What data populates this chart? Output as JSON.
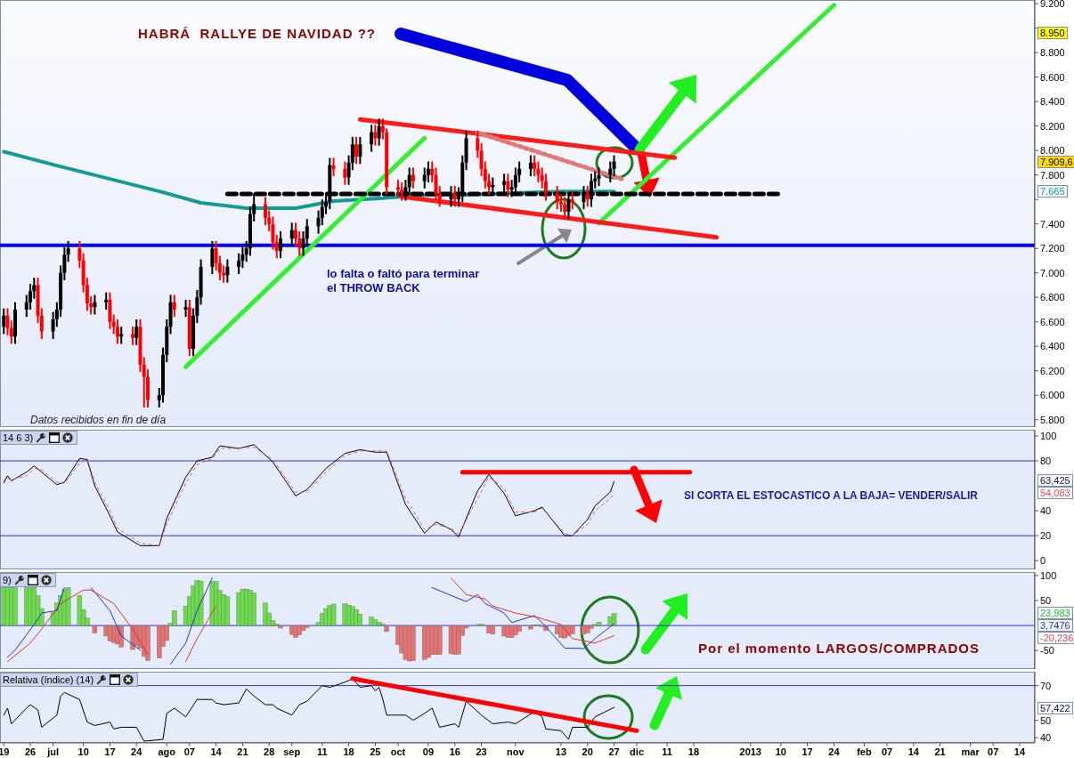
{
  "chart_data": [
    {
      "type": "candlestick",
      "title": "HABRÁ  RALLYE DE NAVIDAD ??",
      "annotations": [
        "lo falta o faltó para terminar\nel THROW BACK",
        "Datos recibidos en fin de día",
        "8.950",
        "7.909,6",
        "7.665"
      ],
      "xlim": [
        "2012-06-18",
        "2013-03-18"
      ],
      "ylim": [
        5740,
        9230
      ],
      "yticks": [
        {
          "value": 5800,
          "label": "5.800"
        },
        {
          "value": 6000,
          "label": "6.000"
        },
        {
          "value": 6200,
          "label": "6.200"
        },
        {
          "value": 6400,
          "label": "6.400"
        },
        {
          "value": 6600,
          "label": "6.600"
        },
        {
          "value": 6800,
          "label": "6.800"
        },
        {
          "value": 7000,
          "label": "7.000"
        },
        {
          "value": 7200,
          "label": "7.200"
        },
        {
          "value": 7400,
          "label": "7.400"
        },
        {
          "value": 7600,
          "label": null
        },
        {
          "value": 7800,
          "label": "7.800"
        },
        {
          "value": 8000,
          "label": "8.000"
        },
        {
          "value": 8200,
          "label": "8.200"
        },
        {
          "value": 8400,
          "label": "8.400"
        },
        {
          "value": 8600,
          "label": "8.600"
        },
        {
          "value": 8800,
          "label": "8.800"
        },
        {
          "value": 9000,
          "label": null
        },
        {
          "value": 9200,
          "label": "9.200"
        }
      ],
      "tick_labels": "y",
      "ref_lines": [
        {
          "axis": "y",
          "value": 7225,
          "color": "#0000ee"
        }
      ],
      "series": [
        {
          "color": "#000000",
          "x": [
            "2012-06-19",
            "2012-06-22",
            "2012-06-25",
            "2012-06-26",
            "2012-06-27",
            "2012-07-02",
            "2012-07-03",
            "2012-07-04",
            "2012-07-05",
            "2012-07-06",
            "2012-07-13",
            "2012-07-16",
            "2012-07-20",
            "2012-07-24",
            "2012-07-30",
            "2012-07-31",
            "2012-08-01",
            "2012-08-02",
            "2012-08-06",
            "2012-08-08",
            "2012-08-09",
            "2012-08-10",
            "2012-08-13",
            "2012-08-17",
            "2012-08-20",
            "2012-08-21",
            "2012-08-22",
            "2012-08-23",
            "2012-08-24",
            "2012-08-31",
            "2012-09-03",
            "2012-09-06",
            "2012-09-07",
            "2012-09-10",
            "2012-09-11",
            "2012-09-12",
            "2012-09-13",
            "2012-09-18",
            "2012-09-19",
            "2012-09-21",
            "2012-09-24",
            "2012-09-26",
            "2012-10-03",
            "2012-10-04",
            "2012-10-08",
            "2012-10-09",
            "2012-10-15",
            "2012-10-17",
            "2012-10-18",
            "2012-10-19",
            "2012-10-26",
            "2012-10-29",
            "2012-10-31",
            "2012-11-01",
            "2012-11-02",
            "2012-11-05",
            "2012-11-15",
            "2012-11-19",
            "2012-11-21",
            "2012-11-22",
            "2012-11-23",
            "2012-11-26",
            "2012-11-27"
          ],
          "ohlc": [
            [
              6560,
              6710,
              6500,
              6650
            ],
            [
              6480,
              6760,
              6420,
              6700
            ],
            [
              6700,
              6820,
              6640,
              6760
            ],
            [
              6760,
              6910,
              6700,
              6850
            ],
            [
              6850,
              6960,
              6790,
              6900
            ],
            [
              6520,
              6680,
              6460,
              6620
            ],
            [
              6620,
              6760,
              6560,
              6700
            ],
            [
              6700,
              7060,
              6640,
              7000
            ],
            [
              7000,
              7210,
              6940,
              7150
            ],
            [
              7150,
              7260,
              7090,
              7200
            ],
            [
              6720,
              6820,
              6660,
              6760
            ],
            [
              6760,
              6840,
              6700,
              6780
            ],
            [
              6480,
              6560,
              6420,
              6500
            ],
            [
              6470,
              6620,
              6410,
              6560
            ],
            [
              5960,
              6060,
              5900,
              6000
            ],
            [
              6000,
              6390,
              5940,
              6330
            ],
            [
              6330,
              6620,
              6270,
              6560
            ],
            [
              6560,
              6820,
              6500,
              6760
            ],
            [
              6700,
              6780,
              6640,
              6720
            ],
            [
              6380,
              6710,
              6320,
              6650
            ],
            [
              6650,
              6860,
              6590,
              6800
            ],
            [
              6800,
              7110,
              6740,
              7050
            ],
            [
              7050,
              7260,
              6990,
              7200
            ],
            [
              6980,
              7110,
              6920,
              7050
            ],
            [
              7050,
              7160,
              6990,
              7100
            ],
            [
              7100,
              7210,
              7040,
              7150
            ],
            [
              7150,
              7260,
              7090,
              7200
            ],
            [
              7200,
              7540,
              7140,
              7480
            ],
            [
              7480,
              7650,
              7420,
              7560
            ],
            [
              7180,
              7340,
              7120,
              7280
            ],
            [
              7280,
              7410,
              7220,
              7350
            ],
            [
              7200,
              7340,
              7140,
              7280
            ],
            [
              7280,
              7440,
              7220,
              7380
            ],
            [
              7380,
              7510,
              7320,
              7450
            ],
            [
              7450,
              7600,
              7390,
              7540
            ],
            [
              7540,
              7640,
              7480,
              7580
            ],
            [
              7580,
              7940,
              7520,
              7880
            ],
            [
              7780,
              7960,
              7720,
              7900
            ],
            [
              7900,
              8110,
              7840,
              8050
            ],
            [
              7950,
              8110,
              7890,
              8050
            ],
            [
              8050,
              8210,
              7990,
              8150
            ],
            [
              8100,
              8260,
              8040,
              8200
            ],
            [
              7650,
              7760,
              7590,
              7700
            ],
            [
              7700,
              7860,
              7640,
              7800
            ],
            [
              7750,
              7860,
              7690,
              7800
            ],
            [
              7800,
              7910,
              7740,
              7850
            ],
            [
              7600,
              7710,
              7540,
              7650
            ],
            [
              7600,
              7700,
              7540,
              7640
            ],
            [
              7640,
              7960,
              7580,
              7900
            ],
            [
              7900,
              8160,
              7840,
              8100
            ],
            [
              7700,
              7780,
              7640,
              7720
            ],
            [
              7720,
              7810,
              7660,
              7750
            ],
            [
              7680,
              7760,
              7620,
              7700
            ],
            [
              7700,
              7860,
              7640,
              7800
            ],
            [
              7800,
              7910,
              7740,
              7850
            ],
            [
              7850,
              7960,
              7790,
              7900
            ],
            [
              7500,
              7660,
              7440,
              7600
            ],
            [
              7580,
              7710,
              7520,
              7650
            ],
            [
              7600,
              7810,
              7540,
              7750
            ],
            [
              7750,
              7830,
              7690,
              7770
            ],
            [
              7770,
              7860,
              7710,
              7800
            ],
            [
              7800,
              7910,
              7740,
              7850
            ],
            [
              7850,
              7960,
              7790,
              7909.6
            ]
          ]
        },
        {
          "color": "#ff0000",
          "x": [
            "2012-06-20",
            "2012-06-21",
            "2012-06-28",
            "2012-06-29",
            "2012-07-09",
            "2012-07-10",
            "2012-07-11",
            "2012-07-12",
            "2012-07-17",
            "2012-07-18",
            "2012-07-19",
            "2012-07-23",
            "2012-07-25",
            "2012-07-26",
            "2012-07-27",
            "2012-08-03",
            "2012-08-07",
            "2012-08-14",
            "2012-08-15",
            "2012-08-16",
            "2012-08-27",
            "2012-08-28",
            "2012-08-29",
            "2012-08-30",
            "2012-09-04",
            "2012-09-05",
            "2012-09-14",
            "2012-09-17",
            "2012-09-20",
            "2012-09-25",
            "2012-09-27",
            "2012-09-28",
            "2012-10-01",
            "2012-10-02",
            "2012-10-05",
            "2012-10-10",
            "2012-10-11",
            "2012-10-12",
            "2012-10-16",
            "2012-10-22",
            "2012-10-23",
            "2012-10-24",
            "2012-10-25",
            "2012-10-30",
            "2012-11-06",
            "2012-11-07",
            "2012-11-08",
            "2012-11-09",
            "2012-11-12",
            "2012-11-13",
            "2012-11-14",
            "2012-11-16",
            "2012-11-20"
          ],
          "ohlc": [
            [
              6650,
              6710,
              6490,
              6550
            ],
            [
              6550,
              6610,
              6420,
              6480
            ],
            [
              6900,
              6960,
              6590,
              6650
            ],
            [
              6650,
              6710,
              6460,
              6520
            ],
            [
              7200,
              7260,
              7040,
              7100
            ],
            [
              7100,
              7160,
              6840,
              6900
            ],
            [
              6900,
              6960,
              6690,
              6750
            ],
            [
              6750,
              6810,
              6660,
              6720
            ],
            [
              6780,
              6840,
              6540,
              6600
            ],
            [
              6600,
              6660,
              6500,
              6560
            ],
            [
              6560,
              6620,
              6420,
              6480
            ],
            [
              6500,
              6560,
              6410,
              6470
            ],
            [
              6560,
              6620,
              6190,
              6250
            ],
            [
              6250,
              6310,
              5900,
              6150
            ],
            [
              6150,
              6210,
              5900,
              5960
            ],
            [
              6760,
              6820,
              6640,
              6700
            ],
            [
              6720,
              6780,
              6320,
              6380
            ],
            [
              7200,
              7260,
              7020,
              7080
            ],
            [
              7080,
              7140,
              6940,
              7000
            ],
            [
              7000,
              7060,
              6920,
              6980
            ],
            [
              7560,
              7620,
              7390,
              7450
            ],
            [
              7450,
              7510,
              7340,
              7400
            ],
            [
              7400,
              7460,
              7190,
              7250
            ],
            [
              7250,
              7310,
              7120,
              7180
            ],
            [
              7350,
              7410,
              7220,
              7280
            ],
            [
              7280,
              7340,
              7140,
              7200
            ],
            [
              7880,
              7940,
              7790,
              7850
            ],
            [
              7850,
              7910,
              7720,
              7780
            ],
            [
              8050,
              8110,
              7890,
              7950
            ],
            [
              8150,
              8210,
              8040,
              8100
            ],
            [
              8200,
              8260,
              8090,
              8150
            ],
            [
              8150,
              8180,
              7640,
              7700
            ],
            [
              7700,
              7760,
              7620,
              7680
            ],
            [
              7680,
              7740,
              7590,
              7650
            ],
            [
              7800,
              7860,
              7690,
              7750
            ],
            [
              7850,
              7910,
              7740,
              7800
            ],
            [
              7800,
              7860,
              7590,
              7650
            ],
            [
              7650,
              7710,
              7540,
              7600
            ],
            [
              7650,
              7710,
              7540,
              7600
            ],
            [
              8100,
              8160,
              7940,
              8000
            ],
            [
              8000,
              8060,
              7790,
              7850
            ],
            [
              7850,
              7910,
              7690,
              7750
            ],
            [
              7750,
              7810,
              7640,
              7700
            ],
            [
              7750,
              7810,
              7620,
              7680
            ],
            [
              7900,
              7960,
              7790,
              7850
            ],
            [
              7850,
              7910,
              7740,
              7800
            ],
            [
              7800,
              7860,
              7690,
              7750
            ],
            [
              7750,
              7810,
              7590,
              7650
            ],
            [
              7650,
              7710,
              7520,
              7580
            ],
            [
              7580,
              7640,
              7500,
              7560
            ],
            [
              7560,
              7620,
              7440,
              7500
            ],
            [
              7600,
              7660,
              7520,
              7580
            ],
            [
              7650,
              7710,
              7540,
              7600
            ]
          ]
        },
        {
          "type": "line",
          "color": "#159a9a",
          "x": [
            "2012-06-19",
            "2012-07-03",
            "2012-07-17",
            "2012-07-31",
            "2012-08-10",
            "2012-08-22",
            "2012-09-04",
            "2012-09-14",
            "2012-09-26",
            "2012-10-09",
            "2012-10-19",
            "2012-10-31",
            "2012-11-13",
            "2012-11-27"
          ],
          "values": [
            7990,
            7877,
            7768,
            7659,
            7572,
            7529,
            7529,
            7587,
            7609,
            7638,
            7638,
            7652,
            7665,
            7665
          ]
        },
        {
          "type": "line",
          "color": "#33ee33",
          "x": [
            "2012-08-06",
            "2012-10-08"
          ],
          "values": [
            6232,
            8101
          ]
        },
        {
          "type": "line",
          "color": "#33ee33",
          "x": [
            "2012-11-23",
            "2013-01-24"
          ],
          "values": [
            7406,
            9188
          ]
        },
        {
          "type": "line",
          "color": "#ff1a1a",
          "x": [
            "2012-09-21",
            "2012-12-13"
          ],
          "values": [
            8254,
            7942
          ]
        },
        {
          "type": "line",
          "color": "#ff1a1a",
          "x": [
            "2012-10-02",
            "2012-12-24"
          ],
          "values": [
            7623,
            7290
          ]
        },
        {
          "type": "line",
          "color": "#e07a7a",
          "line_style": "dotted",
          "x": [
            "2012-10-22",
            "2012-11-29"
          ],
          "values": [
            8145,
            7768
          ]
        },
        {
          "type": "line",
          "color": "#000000",
          "line_style": "dashed",
          "x": [
            "2012-08-17",
            "2013-01-10"
          ],
          "values": [
            7645,
            7645
          ]
        }
      ]
    },
    {
      "type": "line",
      "title": "14 6 3)",
      "annotations": [
        "SI CORTA EL ESTOCASTICO A LA BAJA= VENDER/SALIR",
        "63,425",
        "54,083"
      ],
      "xlim": [
        "2012-06-18",
        "2013-03-18"
      ],
      "ylim": [
        -7,
        105
      ],
      "yticks": [
        0,
        20,
        40,
        80,
        100
      ],
      "tick_labels": "y",
      "ref_lines": [
        {
          "axis": "y",
          "value": 80,
          "color": "#3333cc"
        },
        {
          "axis": "y",
          "value": 20,
          "color": "#3333cc"
        }
      ],
      "series": [
        {
          "color": "#000000",
          "x": [
            "2012-06-19",
            "2012-06-20",
            "2012-06-21",
            "2012-06-25",
            "2012-06-27",
            "2012-06-29",
            "2012-07-03",
            "2012-07-05",
            "2012-07-09",
            "2012-07-11",
            "2012-07-13",
            "2012-07-17",
            "2012-07-19",
            "2012-07-25",
            "2012-07-30",
            "2012-08-01",
            "2012-08-06",
            "2012-08-09",
            "2012-08-13",
            "2012-08-15",
            "2012-08-20",
            "2012-08-24",
            "2012-08-29",
            "2012-09-04",
            "2012-09-07",
            "2012-09-12",
            "2012-09-17",
            "2012-09-21",
            "2012-09-25",
            "2012-09-28",
            "2012-10-03",
            "2012-10-08",
            "2012-10-11",
            "2012-10-15",
            "2012-10-17",
            "2012-10-22",
            "2012-10-25",
            "2012-10-29",
            "2012-11-01",
            "2012-11-06",
            "2012-11-08",
            "2012-11-14",
            "2012-11-16",
            "2012-11-20",
            "2012-11-22",
            "2012-11-26",
            "2012-11-27"
          ],
          "values": [
            63,
            68,
            64,
            71,
            76,
            71,
            61,
            63,
            82,
            81,
            60,
            36,
            23,
            12,
            12,
            34,
            67,
            80,
            83,
            92,
            90,
            93,
            79,
            52,
            57,
            74,
            86,
            89,
            87,
            87,
            45,
            22,
            31,
            25,
            19,
            56,
            69,
            54,
            36,
            40,
            43,
            20,
            20,
            33,
            44,
            55,
            63.425
          ]
        },
        {
          "color": "#e06060",
          "line_style": "dotted",
          "x": [
            "2012-06-19",
            "2012-06-20",
            "2012-06-21",
            "2012-06-25",
            "2012-06-27",
            "2012-06-29",
            "2012-07-03",
            "2012-07-05",
            "2012-07-09",
            "2012-07-11",
            "2012-07-13",
            "2012-07-17",
            "2012-07-19",
            "2012-07-25",
            "2012-07-30",
            "2012-08-01",
            "2012-08-06",
            "2012-08-09",
            "2012-08-13",
            "2012-08-15",
            "2012-08-20",
            "2012-08-24",
            "2012-08-29",
            "2012-09-04",
            "2012-09-07",
            "2012-09-12",
            "2012-09-17",
            "2012-09-21",
            "2012-09-25",
            "2012-09-28",
            "2012-10-03",
            "2012-10-08",
            "2012-10-11",
            "2012-10-15",
            "2012-10-17",
            "2012-10-22",
            "2012-10-25",
            "2012-10-29",
            "2012-11-01",
            "2012-11-06",
            "2012-11-08",
            "2012-11-14",
            "2012-11-16",
            "2012-11-20",
            "2012-11-22",
            "2012-11-26",
            "2012-11-27"
          ],
          "values": [
            62,
            66,
            65,
            68,
            74,
            73,
            63,
            62,
            78,
            82,
            63,
            40,
            26,
            14,
            12,
            30,
            62,
            77,
            82,
            90,
            90,
            91,
            81,
            55,
            55,
            71,
            84,
            88,
            88,
            88,
            50,
            25,
            29,
            26,
            21,
            50,
            67,
            58,
            39,
            39,
            42,
            22,
            20,
            29,
            40,
            50,
            54.083
          ]
        },
        {
          "color": "#ff0000",
          "x": [
            "2012-10-18",
            "2012-12-17"
          ],
          "values": [
            71,
            71
          ]
        }
      ]
    },
    {
      "type": "bar",
      "title": "9)",
      "annotations": [
        "Por el momento LARGOS/COMPRADOS",
        "23,983",
        "3,7476",
        "-20,236"
      ],
      "xlim": [
        "2012-06-18",
        "2013-03-18"
      ],
      "ylim": [
        -87,
        107
      ],
      "yticks": [
        -50,
        50,
        100
      ],
      "tick_labels": "y",
      "ref_lines": [
        {
          "axis": "y",
          "value": 0,
          "color": "#3333cc"
        }
      ],
      "series": [
        {
          "color": "#6ddc4c",
          "x": [
            "2012-06-19",
            "2012-06-20",
            "2012-06-21",
            "2012-06-22",
            "2012-06-25",
            "2012-06-26",
            "2012-06-27",
            "2012-06-28",
            "2012-06-29",
            "2012-07-02",
            "2012-07-03",
            "2012-07-04",
            "2012-07-05",
            "2012-07-06",
            "2012-07-09",
            "2012-07-10",
            "2012-07-11",
            "2012-08-02",
            "2012-08-03",
            "2012-08-06",
            "2012-08-07",
            "2012-08-08",
            "2012-08-09",
            "2012-08-10",
            "2012-08-13",
            "2012-08-14",
            "2012-08-15",
            "2012-08-16",
            "2012-08-17",
            "2012-08-20",
            "2012-08-21",
            "2012-08-22",
            "2012-08-23",
            "2012-08-24",
            "2012-08-27",
            "2012-08-28",
            "2012-08-29",
            "2012-08-30",
            "2012-09-10",
            "2012-09-11",
            "2012-09-12",
            "2012-09-13",
            "2012-09-14",
            "2012-09-17",
            "2012-09-18",
            "2012-09-19",
            "2012-09-20",
            "2012-09-21",
            "2012-09-24",
            "2012-09-25",
            "2012-09-26",
            "2012-09-27",
            "2012-10-22",
            "2012-10-23",
            "2012-11-06",
            "2012-11-07",
            "2012-11-22",
            "2012-11-23",
            "2012-11-26",
            "2012-11-27"
          ],
          "values": [
            76,
            76,
            76,
            76,
            76,
            76,
            76,
            60,
            34,
            26,
            45,
            60,
            72,
            76,
            60,
            32,
            15,
            5,
            30,
            39,
            58,
            80,
            90,
            89,
            88,
            88,
            70,
            62,
            58,
            66,
            73,
            73,
            71,
            65,
            45,
            25,
            10,
            3,
            6,
            24,
            34,
            40,
            43,
            44,
            41,
            38,
            32,
            23,
            17,
            12,
            6,
            3,
            2,
            3,
            1,
            2,
            3,
            7,
            18,
            23.983
          ]
        },
        {
          "color": "#e57373",
          "x": [
            "2012-07-12",
            "2012-07-13",
            "2012-07-16",
            "2012-07-17",
            "2012-07-18",
            "2012-07-19",
            "2012-07-20",
            "2012-07-23",
            "2012-07-24",
            "2012-07-25",
            "2012-07-26",
            "2012-07-27",
            "2012-07-30",
            "2012-07-31",
            "2012-08-01",
            "2012-08-31",
            "2012-09-03",
            "2012-09-04",
            "2012-09-05",
            "2012-09-06",
            "2012-09-07",
            "2012-09-28",
            "2012-10-01",
            "2012-10-02",
            "2012-10-03",
            "2012-10-04",
            "2012-10-05",
            "2012-10-08",
            "2012-10-09",
            "2012-10-10",
            "2012-10-11",
            "2012-10-12",
            "2012-10-15",
            "2012-10-16",
            "2012-10-17",
            "2012-10-18",
            "2012-10-19",
            "2012-10-24",
            "2012-10-25",
            "2012-10-26",
            "2012-10-29",
            "2012-10-30",
            "2012-10-31",
            "2012-11-01",
            "2012-11-02",
            "2012-11-05",
            "2012-11-08",
            "2012-11-09",
            "2012-11-12",
            "2012-11-13",
            "2012-11-14",
            "2012-11-15",
            "2012-11-16",
            "2012-11-19",
            "2012-11-20",
            "2012-11-21"
          ],
          "values": [
            -1,
            -15,
            -21,
            -31,
            -34,
            -37,
            -43,
            -48,
            -40,
            -45,
            -62,
            -70,
            -65,
            -42,
            -30,
            -5,
            -18,
            -24,
            -19,
            -10,
            -4,
            -12,
            -38,
            -55,
            -68,
            -71,
            -70,
            -68,
            -64,
            -58,
            -58,
            -58,
            -56,
            -58,
            -57,
            -20,
            -5,
            -1,
            -15,
            -17,
            -21,
            -24,
            -24,
            -19,
            -12,
            -7,
            -2,
            -10,
            -17,
            -24,
            -25,
            -20,
            -17,
            -17,
            -15,
            -6
          ]
        },
        {
          "type": "line",
          "color": "#2233cc",
          "x": [
            "2012-06-20",
            "2012-06-22",
            "2012-06-27",
            "2012-06-29",
            "2012-07-03",
            "2012-07-05",
            "2012-07-06",
            "2012-07-12",
            "2012-07-17",
            "2012-07-20",
            "2012-07-25",
            "2012-07-27",
            "2012-08-02",
            "2012-08-06",
            "2012-08-09",
            "2012-08-13",
            "2012-08-14",
            "2012-10-10",
            "2012-10-16",
            "2012-10-19",
            "2012-10-22",
            "2012-10-24",
            "2012-10-29",
            "2012-10-31",
            "2012-11-06",
            "2012-11-08",
            "2012-11-14",
            "2012-11-19",
            "2012-11-22",
            "2012-11-27"
          ],
          "values": [
            -63,
            -49,
            2,
            25,
            30,
            76,
            null,
            76,
            30,
            -21,
            -49,
            null,
            -77,
            -35,
            30,
            95,
            null,
            76,
            57,
            48,
            62,
            44,
            25,
            6,
            20,
            6,
            -45,
            -46,
            -26,
            3.7476
          ]
        },
        {
          "type": "line",
          "color": "#dd3333",
          "x": [
            "2012-06-20",
            "2012-06-26",
            "2012-06-29",
            "2012-07-04",
            "2012-07-10",
            "2012-07-12",
            "2012-07-18",
            "2012-07-23",
            "2012-07-27",
            "2012-07-30",
            "2012-08-06",
            "2012-08-09",
            "2012-08-14",
            "2012-08-20",
            "2012-10-15",
            "2012-10-19",
            "2012-10-24",
            "2012-10-26",
            "2012-11-01",
            "2012-11-07",
            "2012-11-13",
            "2012-11-16",
            "2012-11-22",
            "2012-11-27"
          ],
          "values": [
            -72,
            -35,
            -7,
            44,
            71,
            71,
            44,
            -7,
            -58,
            null,
            -72,
            -26,
            39,
            null,
            95,
            62,
            53,
            39,
            25,
            16,
            2,
            -26,
            -35,
            -20.236
          ]
        }
      ]
    },
    {
      "type": "line",
      "title": "Relativa (índice) (14)",
      "annotations": [
        "57,422"
      ],
      "xlim": [
        "2012-06-18",
        "2013-03-18"
      ],
      "ylim": [
        37,
        78
      ],
      "yticks": [
        40,
        50,
        70
      ],
      "xticks": [
        {
          "value": "2012-06-19",
          "label": "19"
        },
        {
          "value": "2012-06-26",
          "label": "26"
        },
        {
          "value": "2012-07-02",
          "label": "jul"
        },
        {
          "value": "2012-07-10",
          "label": "10"
        },
        {
          "value": "2012-07-17",
          "label": "17"
        },
        {
          "value": "2012-07-24",
          "label": "24"
        },
        {
          "value": "2012-08-01",
          "label": "ago"
        },
        {
          "value": "2012-08-07",
          "label": "07"
        },
        {
          "value": "2012-08-14",
          "label": "14"
        },
        {
          "value": "2012-08-21",
          "label": "21"
        },
        {
          "value": "2012-08-28",
          "label": "28"
        },
        {
          "value": "2012-09-03",
          "label": "sep"
        },
        {
          "value": "2012-09-11",
          "label": "11"
        },
        {
          "value": "2012-09-18",
          "label": "18"
        },
        {
          "value": "2012-09-25",
          "label": "25"
        },
        {
          "value": "2012-10-01",
          "label": "oct"
        },
        {
          "value": "2012-10-09",
          "label": "09"
        },
        {
          "value": "2012-10-16",
          "label": "16"
        },
        {
          "value": "2012-10-23",
          "label": "23"
        },
        {
          "value": "2012-11-01",
          "label": "nov"
        },
        {
          "value": "2012-11-13",
          "label": "13"
        },
        {
          "value": "2012-11-20",
          "label": "20"
        },
        {
          "value": "2012-11-27",
          "label": "27"
        },
        {
          "value": "2012-12-03",
          "label": "dic"
        },
        {
          "value": "2012-12-11",
          "label": "11"
        },
        {
          "value": "2012-12-18",
          "label": "18"
        },
        {
          "value": "2013-01-02",
          "label": "2013"
        },
        {
          "value": "2013-01-10",
          "label": "10"
        },
        {
          "value": "2013-01-17",
          "label": "17"
        },
        {
          "value": "2013-01-24",
          "label": "24"
        },
        {
          "value": "2013-02-01",
          "label": "feb"
        },
        {
          "value": "2013-02-07",
          "label": "07"
        },
        {
          "value": "2013-02-14",
          "label": "14"
        },
        {
          "value": "2013-02-21",
          "label": "21"
        },
        {
          "value": "2013-03-01",
          "label": "mar"
        },
        {
          "value": "2013-03-07",
          "label": "07"
        },
        {
          "value": "2013-03-14",
          "label": "14"
        }
      ],
      "ref_lines": [
        {
          "axis": "y",
          "value": 70,
          "color": "#3333cc"
        }
      ],
      "series": [
        {
          "color": "#000000",
          "x": [
            "2012-06-19",
            "2012-06-20",
            "2012-06-21",
            "2012-06-25",
            "2012-06-26",
            "2012-06-28",
            "2012-06-29",
            "2012-07-03",
            "2012-07-04",
            "2012-07-05",
            "2012-07-09",
            "2012-07-11",
            "2012-07-13",
            "2012-07-17",
            "2012-07-18",
            "2012-07-20",
            "2012-07-24",
            "2012-07-26",
            "2012-07-31",
            "2012-08-01",
            "2012-08-03",
            "2012-08-06",
            "2012-08-09",
            "2012-08-13",
            "2012-08-14",
            "2012-08-16",
            "2012-08-20",
            "2012-08-22",
            "2012-08-24",
            "2012-08-27",
            "2012-08-29",
            "2012-08-30",
            "2012-09-03",
            "2012-09-05",
            "2012-09-07",
            "2012-09-11",
            "2012-09-13",
            "2012-09-17",
            "2012-09-19",
            "2012-09-21",
            "2012-09-24",
            "2012-09-25",
            "2012-09-26",
            "2012-09-27",
            "2012-09-28",
            "2012-10-03",
            "2012-10-05",
            "2012-10-08",
            "2012-10-10",
            "2012-10-12",
            "2012-10-16",
            "2012-10-17",
            "2012-10-19",
            "2012-10-23",
            "2012-10-26",
            "2012-10-30",
            "2012-11-01",
            "2012-11-06",
            "2012-11-08",
            "2012-11-09",
            "2012-11-13",
            "2012-11-15",
            "2012-11-16",
            "2012-11-20",
            "2012-11-22",
            "2012-11-27"
          ],
          "values": [
            53,
            57,
            48,
            57,
            59,
            56,
            46,
            53,
            64,
            66,
            62,
            49,
            47,
            49,
            45,
            46,
            46,
            38,
            39,
            54,
            57,
            52,
            62,
            62,
            60,
            59,
            60,
            68,
            64,
            59,
            59,
            57,
            53,
            59,
            61,
            70,
            69,
            72,
            74,
            69,
            70,
            67,
            69,
            62,
            53,
            53,
            50,
            54,
            57,
            46,
            48,
            46,
            61,
            53,
            48,
            49,
            48,
            55,
            52,
            45,
            44,
            39,
            46,
            46,
            52,
            57.422
          ]
        },
        {
          "color": "#ff0000",
          "x": [
            "2012-09-19",
            "2012-12-03"
          ],
          "values": [
            74,
            44
          ]
        }
      ]
    }
  ]
}
